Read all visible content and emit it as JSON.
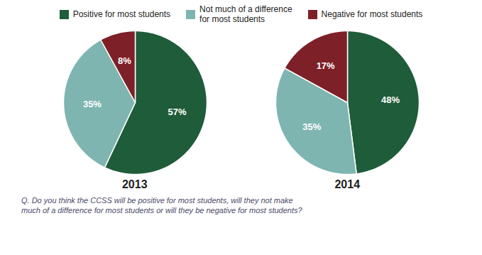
{
  "chart_data": {
    "type": "pie",
    "categories": [
      "Positive for most students",
      "Not much of a difference\nfor most students",
      "Negative for most students"
    ],
    "colors": [
      "#1e5c3a",
      "#7fb5b0",
      "#7d2027"
    ],
    "series": [
      {
        "name": "2013",
        "values": [
          57,
          35,
          8
        ],
        "value_labels": [
          "57%",
          "35%",
          "8%"
        ]
      },
      {
        "name": "2014",
        "values": [
          48,
          35,
          17
        ],
        "value_labels": [
          "48%",
          "35%",
          "17%"
        ]
      }
    ],
    "data_labels": true,
    "legend": "top",
    "annotations": [
      "Q. Do you think the CCSS will be positive for most students, will they not make\nmuch of a difference for most students or will they be negative for most students?"
    ]
  }
}
